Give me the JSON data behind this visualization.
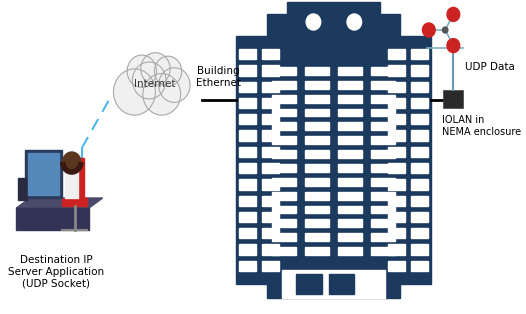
{
  "background_color": "#ffffff",
  "building_color": "#1c3a5e",
  "window_color": "#ffffff",
  "line_color": "#000000",
  "dashed_line_color": "#4db8e8",
  "cloud_fill": "#f0f0f0",
  "cloud_stroke": "#aaaaaa",
  "anemometer_arm_color": "#7bafc4",
  "anemometer_cup_color": "#cc2222",
  "labels": {
    "internet": "Internet",
    "ethernet": "Building\nEthernet",
    "udp_data": "UDP Data",
    "iolan": "IOLAN in\nNEMA enclosure",
    "destination": "Destination IP\nServer Application\n(UDP Socket)"
  },
  "font_size": 7.5
}
